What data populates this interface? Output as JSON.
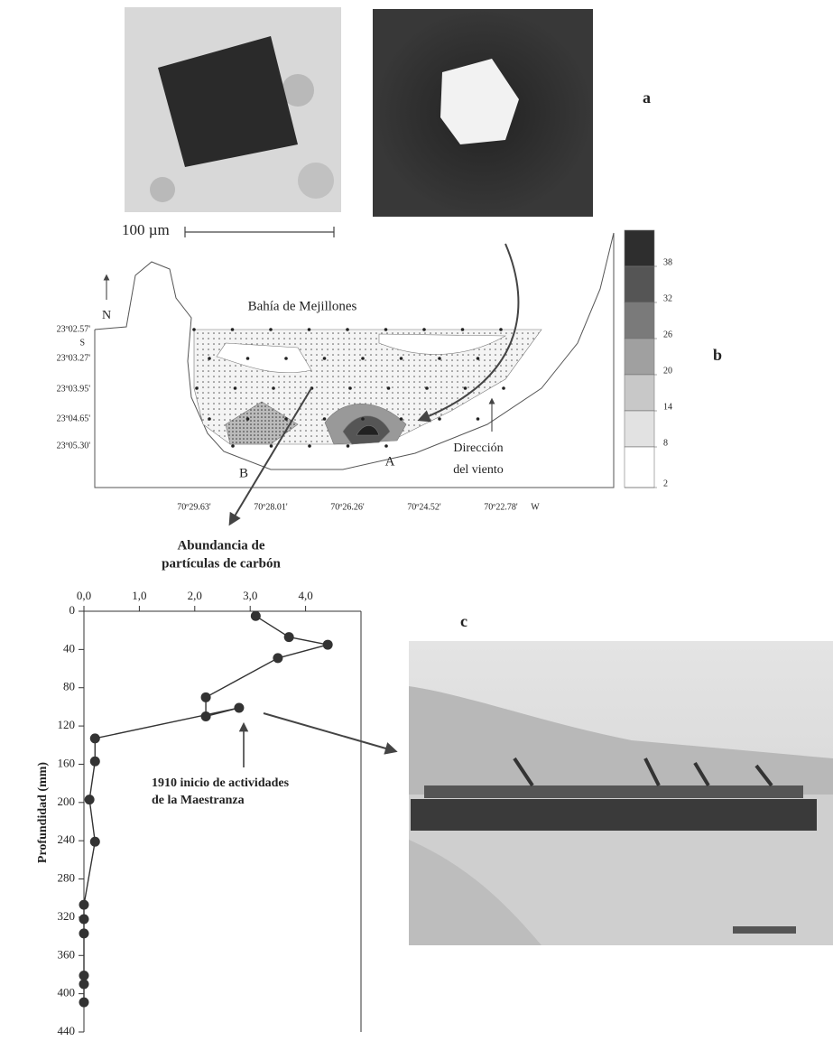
{
  "panel_labels": [
    "a",
    "b",
    "c"
  ],
  "scale_bar": "100 µm",
  "map": {
    "title": "Bahía de Mejillones",
    "north": "N",
    "lat_labels": [
      "23º02.57'",
      "23º03.27'",
      "23º03.95'",
      "23º04.65'",
      "23º05.30'"
    ],
    "lat_hemisphere": "S",
    "lon_labels": [
      "70º29.63'",
      "70º28.01'",
      "70º26.26'",
      "70º24.52'",
      "70º22.78'"
    ],
    "lon_hemisphere": "W",
    "transect": [
      "B",
      "A"
    ],
    "wind": [
      "Dirección",
      "del viento"
    ],
    "legend_levels": [
      38,
      32,
      26,
      20,
      14,
      8,
      2
    ]
  },
  "chart_data": {
    "type": "line",
    "title": [
      "Abundancia de",
      "partículas de carbón"
    ],
    "y_label": "Profundidad (mm)",
    "x": [
      3.1,
      3.7,
      4.4,
      3.5,
      2.2,
      2.2,
      2.8,
      0.2,
      0.2,
      0.1,
      0.2,
      0,
      0,
      0,
      0,
      0,
      0
    ],
    "y": [
      5,
      27,
      35,
      49,
      90,
      110,
      101,
      133,
      157,
      197,
      241,
      307,
      322,
      337,
      381,
      390,
      409
    ],
    "color": "#333333",
    "xlim": [
      0,
      5
    ],
    "xticks": [
      {
        "value": 0,
        "label": "0,0"
      },
      {
        "value": 1,
        "label": "1,0"
      },
      {
        "value": 2,
        "label": "2,0"
      },
      {
        "value": 3,
        "label": "3,0"
      },
      {
        "value": 4,
        "label": "4,0"
      }
    ],
    "ylim": [
      0,
      440
    ],
    "yticks": [
      0,
      40,
      80,
      120,
      160,
      200,
      240,
      280,
      320,
      360,
      400,
      440
    ],
    "y_reversed": true,
    "x_axis_position": "top",
    "annotation": [
      "1910 inicio de actividades",
      "de la Maestranza"
    ]
  }
}
